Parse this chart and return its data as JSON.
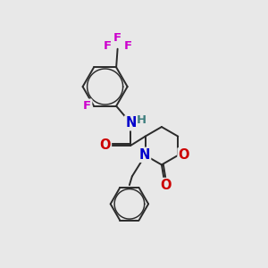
{
  "background_color": "#e8e8e8",
  "atom_colors": {
    "C": "#000000",
    "N": "#0000cc",
    "O": "#cc0000",
    "F": "#cc00cc",
    "H": "#408080"
  },
  "bond_color": "#2a2a2a",
  "bond_width": 1.4,
  "figsize": [
    3.0,
    3.0
  ],
  "dpi": 100,
  "xlim": [
    0,
    10
  ],
  "ylim": [
    0,
    10
  ]
}
